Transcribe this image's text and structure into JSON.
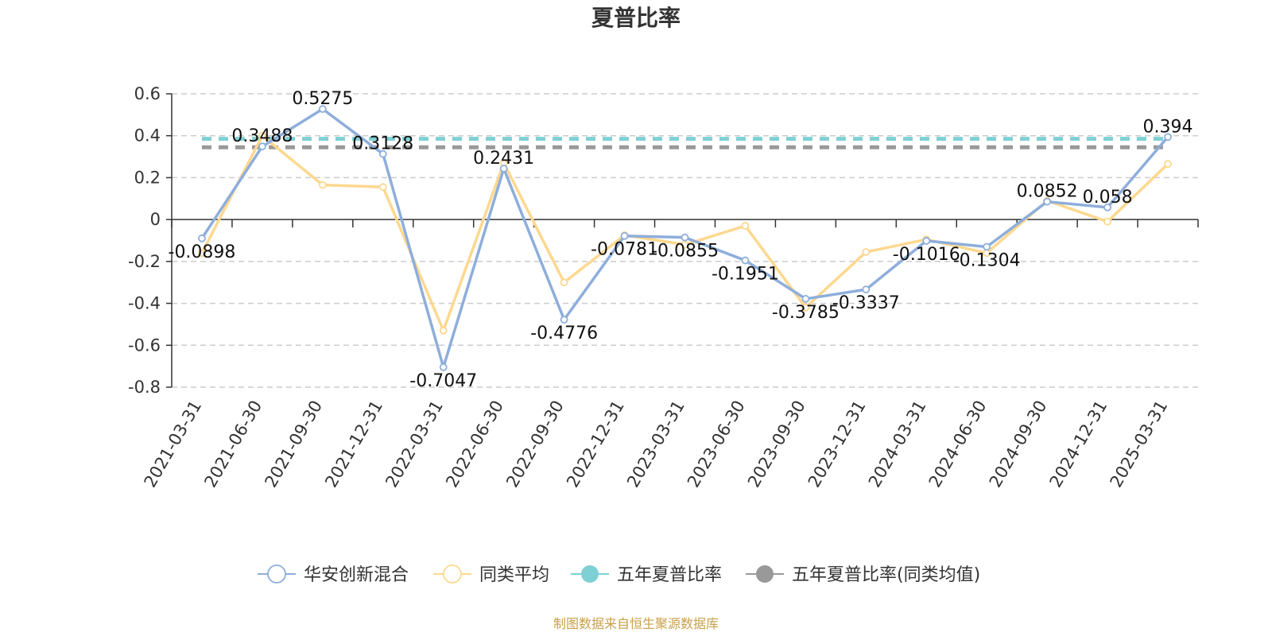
{
  "chart_data": {
    "type": "line",
    "title": "夏普比率",
    "categories": [
      "2021-03-31",
      "2021-06-30",
      "2021-09-30",
      "2021-12-31",
      "2022-03-31",
      "2022-06-30",
      "2022-09-30",
      "2022-12-31",
      "2023-03-31",
      "2023-06-30",
      "2023-09-30",
      "2023-12-31",
      "2024-03-31",
      "2024-06-30",
      "2024-09-30",
      "2024-12-31",
      "2025-03-31"
    ],
    "series": [
      {
        "name": "华安创新混合",
        "color": "#8eaedb",
        "values": [
          -0.0898,
          0.3488,
          0.5275,
          0.3128,
          -0.7047,
          0.2431,
          -0.4776,
          -0.0781,
          -0.0855,
          -0.1951,
          -0.3785,
          -0.3337,
          -0.1016,
          -0.1304,
          0.0852,
          0.058,
          0.394
        ],
        "labels": [
          "-0.0898",
          "0.3488",
          "0.5275",
          "0.3128",
          "-0.7047",
          "0.2431",
          "-0.4776",
          "-0.0781",
          "-0.0855",
          "-0.1951",
          "-0.3785",
          "-0.3337",
          "-0.1016",
          "-0.1304",
          "0.0852",
          "0.058",
          "0.394"
        ]
      },
      {
        "name": "同类平均",
        "color": "#fdd88f",
        "values": [
          -0.16,
          0.4,
          0.165,
          0.155,
          -0.53,
          0.27,
          -0.3,
          -0.075,
          -0.12,
          -0.03,
          -0.42,
          -0.155,
          -0.095,
          -0.16,
          0.09,
          -0.01,
          0.265
        ]
      },
      {
        "name": "五年夏普比率",
        "color": "#7fd0d4",
        "type": "reference",
        "value": 0.385
      },
      {
        "name": "五年夏普比率(同类均值)",
        "color": "#999999",
        "type": "reference",
        "value": 0.345
      }
    ],
    "yticks": [
      "0.6",
      "0.4",
      "0.2",
      "0",
      "-0.2",
      "-0.4",
      "-0.6",
      "-0.8"
    ],
    "ylim": [
      -0.8,
      0.6
    ],
    "grid": true,
    "legend_position": "bottom"
  },
  "footer": {
    "source": "制图数据来自恒生聚源数据库"
  }
}
